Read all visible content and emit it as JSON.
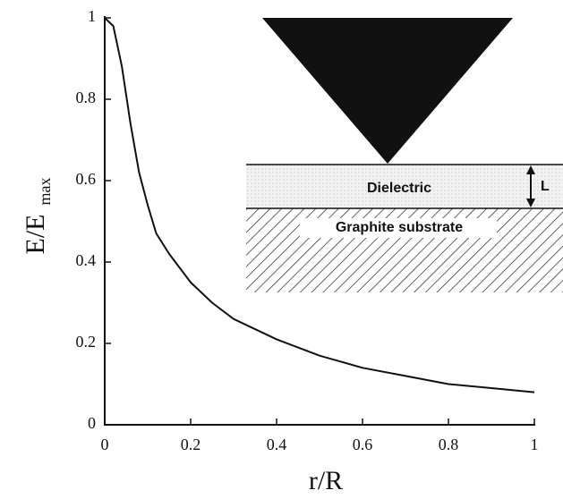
{
  "chart_data": {
    "type": "line",
    "xlabel": "r/R",
    "ylabel": "E/E",
    "ylabel_subscript": "max",
    "x": [
      0,
      0.02,
      0.04,
      0.06,
      0.08,
      0.1,
      0.12,
      0.15,
      0.2,
      0.25,
      0.3,
      0.4,
      0.5,
      0.6,
      0.7,
      0.8,
      0.9,
      1.0
    ],
    "series": [
      {
        "name": null,
        "color": "#111111",
        "values": [
          1.0,
          0.98,
          0.88,
          0.74,
          0.62,
          0.54,
          0.47,
          0.42,
          0.35,
          0.3,
          0.26,
          0.21,
          0.17,
          0.14,
          0.12,
          0.1,
          0.09,
          0.08
        ]
      }
    ],
    "xlim": [
      0,
      1
    ],
    "xticks": [
      0,
      0.2,
      0.4,
      0.6,
      0.8,
      1
    ],
    "ylim": [
      0,
      1
    ],
    "yticks": [
      0,
      0.2,
      0.4,
      0.6,
      0.8,
      1
    ],
    "grid": false,
    "inset": {
      "dielectric": "Dielectric",
      "thickness": "L",
      "substrate": "Graphite substrate"
    }
  }
}
